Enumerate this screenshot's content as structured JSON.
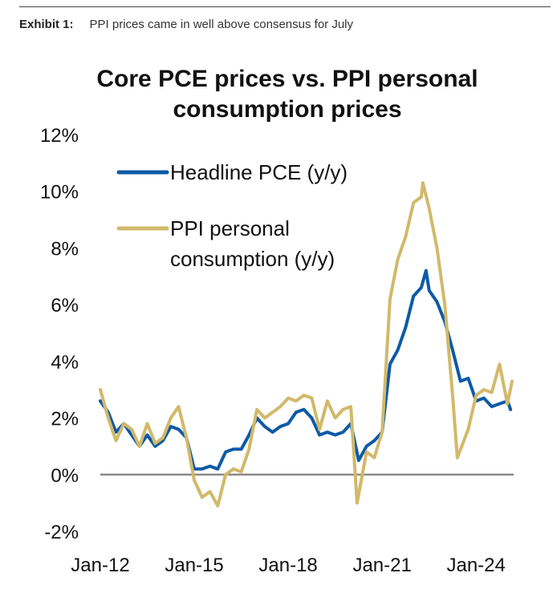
{
  "exhibit": {
    "label": "Exhibit 1:",
    "caption": "PPI prices came in well above consensus for July"
  },
  "chart_data": {
    "type": "line",
    "title": [
      "Core PCE prices vs. PPI personal",
      "consumption prices"
    ],
    "xlabel": "",
    "ylabel": "",
    "ylim": [
      -2,
      12
    ],
    "xlim": [
      2012.0,
      2025.2
    ],
    "y_ticks": [
      -2,
      0,
      2,
      4,
      6,
      8,
      10,
      12
    ],
    "y_tick_labels": [
      "-2%",
      "0%",
      "2%",
      "4%",
      "6%",
      "8%",
      "10%",
      "12%"
    ],
    "x_ticks": [
      2012,
      2015,
      2018,
      2021,
      2024
    ],
    "x_tick_labels": [
      "Jan-12",
      "Jan-15",
      "Jan-18",
      "Jan-21",
      "Jan-24"
    ],
    "grid": false,
    "zero_line": true,
    "legend_position": "top-left",
    "series": [
      {
        "name": "Headline PCE (y/y)",
        "color": "#0d5aa7",
        "points": [
          [
            2012.0,
            2.6
          ],
          [
            2012.25,
            2.2
          ],
          [
            2012.5,
            1.5
          ],
          [
            2012.75,
            1.8
          ],
          [
            2013.0,
            1.4
          ],
          [
            2013.25,
            1.0
          ],
          [
            2013.5,
            1.4
          ],
          [
            2013.75,
            1.0
          ],
          [
            2014.0,
            1.2
          ],
          [
            2014.25,
            1.7
          ],
          [
            2014.5,
            1.6
          ],
          [
            2014.75,
            1.3
          ],
          [
            2015.0,
            0.2
          ],
          [
            2015.25,
            0.2
          ],
          [
            2015.5,
            0.3
          ],
          [
            2015.75,
            0.2
          ],
          [
            2016.0,
            0.8
          ],
          [
            2016.25,
            0.9
          ],
          [
            2016.5,
            0.9
          ],
          [
            2016.75,
            1.4
          ],
          [
            2017.0,
            2.0
          ],
          [
            2017.25,
            1.7
          ],
          [
            2017.5,
            1.5
          ],
          [
            2017.75,
            1.7
          ],
          [
            2018.0,
            1.8
          ],
          [
            2018.25,
            2.2
          ],
          [
            2018.5,
            2.3
          ],
          [
            2018.75,
            2.0
          ],
          [
            2019.0,
            1.4
          ],
          [
            2019.25,
            1.5
          ],
          [
            2019.5,
            1.4
          ],
          [
            2019.75,
            1.5
          ],
          [
            2020.0,
            1.8
          ],
          [
            2020.25,
            0.5
          ],
          [
            2020.5,
            1.0
          ],
          [
            2020.75,
            1.2
          ],
          [
            2021.0,
            1.5
          ],
          [
            2021.25,
            3.9
          ],
          [
            2021.5,
            4.4
          ],
          [
            2021.75,
            5.2
          ],
          [
            2022.0,
            6.3
          ],
          [
            2022.25,
            6.6
          ],
          [
            2022.4,
            7.2
          ],
          [
            2022.5,
            6.5
          ],
          [
            2022.75,
            6.1
          ],
          [
            2023.0,
            5.4
          ],
          [
            2023.25,
            4.4
          ],
          [
            2023.5,
            3.3
          ],
          [
            2023.75,
            3.4
          ],
          [
            2024.0,
            2.6
          ],
          [
            2024.25,
            2.7
          ],
          [
            2024.5,
            2.4
          ],
          [
            2024.75,
            2.5
          ],
          [
            2025.0,
            2.6
          ],
          [
            2025.1,
            2.3
          ]
        ]
      },
      {
        "name": "PPI personal consumption (y/y)",
        "color": "#d2b96a",
        "points": [
          [
            2012.0,
            3.0
          ],
          [
            2012.25,
            2.0
          ],
          [
            2012.5,
            1.2
          ],
          [
            2012.75,
            1.8
          ],
          [
            2013.0,
            1.6
          ],
          [
            2013.25,
            1.0
          ],
          [
            2013.5,
            1.8
          ],
          [
            2013.75,
            1.1
          ],
          [
            2014.0,
            1.3
          ],
          [
            2014.25,
            2.0
          ],
          [
            2014.5,
            2.4
          ],
          [
            2014.75,
            1.3
          ],
          [
            2015.0,
            -0.2
          ],
          [
            2015.25,
            -0.8
          ],
          [
            2015.5,
            -0.6
          ],
          [
            2015.75,
            -1.1
          ],
          [
            2016.0,
            0.0
          ],
          [
            2016.25,
            0.2
          ],
          [
            2016.5,
            0.1
          ],
          [
            2016.75,
            0.9
          ],
          [
            2017.0,
            2.3
          ],
          [
            2017.25,
            2.0
          ],
          [
            2017.5,
            2.2
          ],
          [
            2017.75,
            2.4
          ],
          [
            2018.0,
            2.7
          ],
          [
            2018.25,
            2.6
          ],
          [
            2018.5,
            2.8
          ],
          [
            2018.75,
            2.7
          ],
          [
            2019.0,
            1.6
          ],
          [
            2019.25,
            2.6
          ],
          [
            2019.5,
            2.0
          ],
          [
            2019.75,
            2.3
          ],
          [
            2020.0,
            2.4
          ],
          [
            2020.2,
            -1.0
          ],
          [
            2020.5,
            0.8
          ],
          [
            2020.75,
            0.6
          ],
          [
            2021.0,
            1.5
          ],
          [
            2021.25,
            6.2
          ],
          [
            2021.5,
            7.6
          ],
          [
            2021.75,
            8.4
          ],
          [
            2022.0,
            9.6
          ],
          [
            2022.25,
            9.8
          ],
          [
            2022.3,
            10.3
          ],
          [
            2022.5,
            9.4
          ],
          [
            2022.75,
            8.0
          ],
          [
            2023.0,
            6.0
          ],
          [
            2023.25,
            2.8
          ],
          [
            2023.4,
            0.6
          ],
          [
            2023.75,
            1.6
          ],
          [
            2024.0,
            2.8
          ],
          [
            2024.25,
            3.0
          ],
          [
            2024.5,
            2.9
          ],
          [
            2024.75,
            3.9
          ],
          [
            2025.0,
            2.5
          ],
          [
            2025.15,
            3.3
          ]
        ]
      }
    ]
  }
}
